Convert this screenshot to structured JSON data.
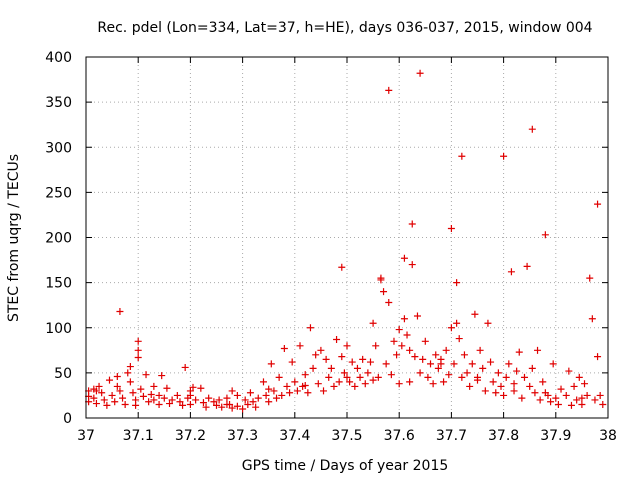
{
  "chart_data": {
    "type": "scatter",
    "title": "Rec. pdel (Lon=334, Lat=37, h=HE), days 036-037, 2015, window 004",
    "xlabel": "GPS time / Days of year 2015",
    "ylabel": "STEC from uqrg / TECUs",
    "xlim": [
      37,
      38
    ],
    "ylim": [
      0,
      400
    ],
    "xticks": [
      37,
      37.1,
      37.2,
      37.3,
      37.4,
      37.5,
      37.6,
      37.7,
      37.8,
      37.9,
      38
    ],
    "xtick_labels": [
      "37",
      "37.1",
      "37.2",
      "37.3",
      "37.4",
      "37.5",
      "37.6",
      "37.7",
      "37.8",
      "37.9",
      "38"
    ],
    "yticks": [
      0,
      50,
      100,
      150,
      200,
      250,
      300,
      350,
      400
    ],
    "ytick_labels": [
      "0",
      "50",
      "100",
      "150",
      "200",
      "250",
      "300",
      "350",
      "400"
    ],
    "grid": true,
    "marker": "+",
    "marker_color": "#e00000",
    "series": [
      {
        "name": "STEC",
        "points": [
          [
            37.005,
            30
          ],
          [
            37.005,
            24
          ],
          [
            37.005,
            18
          ],
          [
            37.015,
            32
          ],
          [
            37.015,
            22
          ],
          [
            37.02,
            16
          ],
          [
            37.025,
            35
          ],
          [
            37.03,
            28
          ],
          [
            37.035,
            20
          ],
          [
            37.04,
            14
          ],
          [
            37.045,
            42
          ],
          [
            37.05,
            25
          ],
          [
            37.055,
            18
          ],
          [
            37.06,
            46
          ],
          [
            37.065,
            118
          ],
          [
            37.065,
            30
          ],
          [
            37.07,
            22
          ],
          [
            37.075,
            15
          ],
          [
            37.08,
            50
          ],
          [
            37.085,
            40
          ],
          [
            37.085,
            57
          ],
          [
            37.09,
            28
          ],
          [
            37.095,
            20
          ],
          [
            37.095,
            14
          ],
          [
            37.1,
            75
          ],
          [
            37.1,
            85
          ],
          [
            37.1,
            67
          ],
          [
            37.105,
            32
          ],
          [
            37.11,
            24
          ],
          [
            37.115,
            48
          ],
          [
            37.12,
            18
          ],
          [
            37.125,
            26
          ],
          [
            37.13,
            20
          ],
          [
            37.14,
            25
          ],
          [
            37.14,
            15
          ],
          [
            37.145,
            47
          ],
          [
            37.15,
            22
          ],
          [
            37.155,
            33
          ],
          [
            37.16,
            16
          ],
          [
            37.165,
            20
          ],
          [
            37.175,
            25
          ],
          [
            37.18,
            18
          ],
          [
            37.185,
            14
          ],
          [
            37.19,
            56
          ],
          [
            37.195,
            22
          ],
          [
            37.2,
            30
          ],
          [
            37.2,
            15
          ],
          [
            37.205,
            34
          ],
          [
            37.21,
            20
          ],
          [
            37.22,
            33
          ],
          [
            37.225,
            17
          ],
          [
            37.23,
            12
          ],
          [
            37.235,
            22
          ],
          [
            37.245,
            18
          ],
          [
            37.25,
            14
          ],
          [
            37.255,
            20
          ],
          [
            37.26,
            12
          ],
          [
            37.27,
            22
          ],
          [
            37.275,
            15
          ],
          [
            37.28,
            30
          ],
          [
            37.28,
            11
          ],
          [
            37.29,
            25
          ],
          [
            37.29,
            13
          ],
          [
            37.3,
            10
          ],
          [
            37.305,
            20
          ],
          [
            37.31,
            15
          ],
          [
            37.315,
            28
          ],
          [
            37.32,
            18
          ],
          [
            37.325,
            12
          ],
          [
            37.33,
            22
          ],
          [
            37.34,
            40
          ],
          [
            37.345,
            25
          ],
          [
            37.35,
            18
          ],
          [
            37.355,
            60
          ],
          [
            37.36,
            30
          ],
          [
            37.365,
            22
          ],
          [
            37.37,
            45
          ],
          [
            37.375,
            25
          ],
          [
            37.38,
            77
          ],
          [
            37.385,
            35
          ],
          [
            37.39,
            28
          ],
          [
            37.395,
            62
          ],
          [
            37.4,
            40
          ],
          [
            37.405,
            30
          ],
          [
            37.41,
            80
          ],
          [
            37.415,
            35
          ],
          [
            37.42,
            48
          ],
          [
            37.425,
            28
          ],
          [
            37.43,
            100
          ],
          [
            37.435,
            55
          ],
          [
            37.44,
            70
          ],
          [
            37.445,
            38
          ],
          [
            37.45,
            75
          ],
          [
            37.455,
            30
          ],
          [
            37.46,
            65
          ],
          [
            37.465,
            45
          ],
          [
            37.47,
            55
          ],
          [
            37.475,
            35
          ],
          [
            37.48,
            87
          ],
          [
            37.485,
            40
          ],
          [
            37.49,
            167
          ],
          [
            37.49,
            68
          ],
          [
            37.495,
            50
          ],
          [
            37.5,
            80
          ],
          [
            37.505,
            40
          ],
          [
            37.51,
            62
          ],
          [
            37.515,
            35
          ],
          [
            37.52,
            55
          ],
          [
            37.525,
            45
          ],
          [
            37.53,
            65
          ],
          [
            37.535,
            38
          ],
          [
            37.54,
            50
          ],
          [
            37.545,
            62
          ],
          [
            37.55,
            105
          ],
          [
            37.555,
            80
          ],
          [
            37.56,
            45
          ],
          [
            37.565,
            155
          ],
          [
            37.565,
            153
          ],
          [
            37.57,
            140
          ],
          [
            37.575,
            60
          ],
          [
            37.58,
            363
          ],
          [
            37.58,
            128
          ],
          [
            37.585,
            48
          ],
          [
            37.59,
            85
          ],
          [
            37.595,
            70
          ],
          [
            37.6,
            98
          ],
          [
            37.6,
            38
          ],
          [
            37.605,
            80
          ],
          [
            37.61,
            177
          ],
          [
            37.61,
            110
          ],
          [
            37.615,
            92
          ],
          [
            37.62,
            75
          ],
          [
            37.625,
            215
          ],
          [
            37.625,
            170
          ],
          [
            37.63,
            68
          ],
          [
            37.635,
            113
          ],
          [
            37.64,
            382
          ],
          [
            37.64,
            50
          ],
          [
            37.645,
            65
          ],
          [
            37.65,
            85
          ],
          [
            37.655,
            45
          ],
          [
            37.66,
            60
          ],
          [
            37.665,
            38
          ],
          [
            37.67,
            70
          ],
          [
            37.675,
            55
          ],
          [
            37.68,
            65
          ],
          [
            37.685,
            40
          ],
          [
            37.69,
            75
          ],
          [
            37.695,
            48
          ],
          [
            37.7,
            210
          ],
          [
            37.7,
            100
          ],
          [
            37.705,
            60
          ],
          [
            37.71,
            150
          ],
          [
            37.71,
            105
          ],
          [
            37.715,
            88
          ],
          [
            37.72,
            290
          ],
          [
            37.72,
            45
          ],
          [
            37.725,
            70
          ],
          [
            37.73,
            50
          ],
          [
            37.735,
            35
          ],
          [
            37.74,
            60
          ],
          [
            37.745,
            115
          ],
          [
            37.75,
            45
          ],
          [
            37.755,
            75
          ],
          [
            37.76,
            55
          ],
          [
            37.765,
            30
          ],
          [
            37.77,
            105
          ],
          [
            37.775,
            62
          ],
          [
            37.78,
            40
          ],
          [
            37.785,
            28
          ],
          [
            37.79,
            50
          ],
          [
            37.795,
            35
          ],
          [
            37.8,
            290
          ],
          [
            37.8,
            25
          ],
          [
            37.805,
            45
          ],
          [
            37.81,
            60
          ],
          [
            37.815,
            162
          ],
          [
            37.82,
            30
          ],
          [
            37.825,
            52
          ],
          [
            37.83,
            73
          ],
          [
            37.835,
            22
          ],
          [
            37.84,
            45
          ],
          [
            37.845,
            168
          ],
          [
            37.85,
            35
          ],
          [
            37.855,
            320
          ],
          [
            37.855,
            55
          ],
          [
            37.86,
            28
          ],
          [
            37.865,
            75
          ],
          [
            37.87,
            20
          ],
          [
            37.875,
            40
          ],
          [
            37.88,
            203
          ],
          [
            37.885,
            25
          ],
          [
            37.89,
            18
          ],
          [
            37.895,
            60
          ],
          [
            37.9,
            22
          ],
          [
            37.905,
            15
          ],
          [
            37.91,
            32
          ],
          [
            37.92,
            25
          ],
          [
            37.925,
            52
          ],
          [
            37.93,
            14
          ],
          [
            37.935,
            35
          ],
          [
            37.94,
            20
          ],
          [
            37.945,
            45
          ],
          [
            37.95,
            15
          ],
          [
            37.955,
            38
          ],
          [
            37.96,
            25
          ],
          [
            37.965,
            155
          ],
          [
            37.97,
            110
          ],
          [
            37.975,
            20
          ],
          [
            37.98,
            237
          ],
          [
            37.98,
            68
          ],
          [
            37.985,
            25
          ],
          [
            37.99,
            15
          ],
          [
            37.02,
            30
          ],
          [
            37.06,
            35
          ],
          [
            37.13,
            35
          ],
          [
            37.2,
            25
          ],
          [
            37.27,
            15
          ],
          [
            37.35,
            32
          ],
          [
            37.42,
            36
          ],
          [
            37.5,
            45
          ],
          [
            37.55,
            42
          ],
          [
            37.62,
            40
          ],
          [
            37.68,
            60
          ],
          [
            37.75,
            42
          ],
          [
            37.82,
            38
          ],
          [
            37.88,
            28
          ],
          [
            37.95,
            22
          ]
        ]
      }
    ]
  }
}
